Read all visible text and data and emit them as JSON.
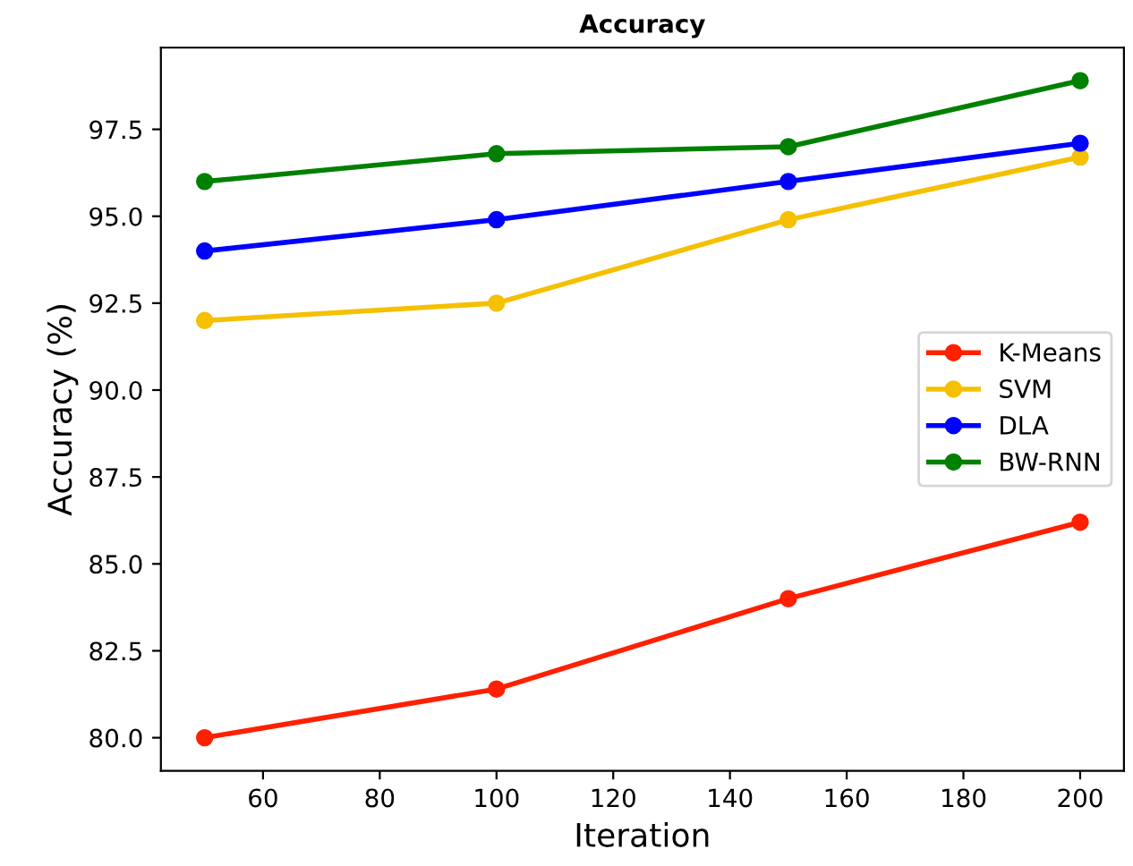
{
  "chart_data": {
    "type": "line",
    "title": "Accuracy",
    "xlabel": "Iteration",
    "ylabel": "Accuracy (%)",
    "x": [
      50,
      100,
      150,
      200
    ],
    "series": [
      {
        "name": "K-Means",
        "color": "#ff2000",
        "values": [
          80.0,
          81.4,
          84.0,
          86.2
        ]
      },
      {
        "name": "SVM",
        "color": "#f5c000",
        "values": [
          92.0,
          92.5,
          94.9,
          96.7
        ]
      },
      {
        "name": "DLA",
        "color": "#0000ff",
        "values": [
          94.0,
          94.9,
          96.0,
          97.1
        ]
      },
      {
        "name": "BW-RNN",
        "color": "#008000",
        "values": [
          96.0,
          96.8,
          97.0,
          98.9
        ]
      }
    ],
    "xlim": [
      42.5,
      207.5
    ],
    "xticks": [
      60,
      80,
      100,
      120,
      140,
      160,
      180,
      200
    ],
    "ylim": [
      79.05,
      99.85
    ],
    "yticks": [
      {
        "value": 80,
        "label": "80.0"
      },
      {
        "value": 82.5,
        "label": "82.5"
      },
      {
        "value": 85,
        "label": "85.0"
      },
      {
        "value": 87.5,
        "label": "87.5"
      },
      {
        "value": 90,
        "label": "90.0"
      },
      {
        "value": 92.5,
        "label": "92.5"
      },
      {
        "value": 95,
        "label": "95.0"
      },
      {
        "value": 97.5,
        "label": "97.5"
      }
    ],
    "marker": "circle",
    "line_style": "solid",
    "legend": "right",
    "grid": false
  }
}
